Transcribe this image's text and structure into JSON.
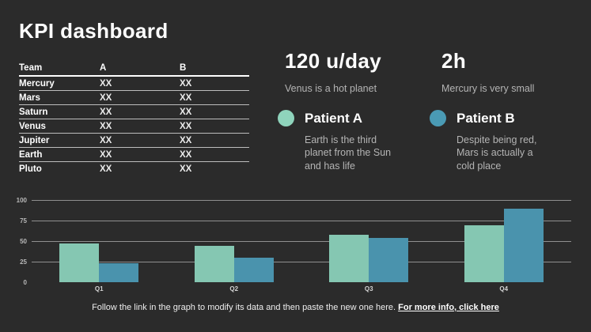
{
  "slide": {
    "title": "KPI dashboard",
    "background": "#2b2b2b"
  },
  "table": {
    "columns": [
      "Team",
      "A",
      "B"
    ],
    "rows": [
      {
        "team": "Mercury",
        "a": "XX",
        "b": "XX"
      },
      {
        "team": "Mars",
        "a": "XX",
        "b": "XX"
      },
      {
        "team": "Saturn",
        "a": "XX",
        "b": "XX"
      },
      {
        "team": "Venus",
        "a": "XX",
        "b": "XX"
      },
      {
        "team": "Jupiter",
        "a": "XX",
        "b": "XX"
      },
      {
        "team": "Earth",
        "a": "XX",
        "b": "XX"
      },
      {
        "team": "Pluto",
        "a": "XX",
        "b": "XX"
      }
    ]
  },
  "kpis": [
    {
      "value": "120 u/day",
      "caption": "Venus is a hot planet"
    },
    {
      "value": "2h",
      "caption": "Mercury is very small"
    }
  ],
  "legend": [
    {
      "label": "Patient A",
      "color": "#8FD4BC",
      "description": "Earth is the third planet from the Sun and has life"
    },
    {
      "label": "Patient B",
      "color": "#4A9AB4",
      "description": "Despite being red, Mars is actually a cold place"
    }
  ],
  "chart_data": {
    "type": "bar",
    "categories": [
      "Q1",
      "Q2",
      "Q3",
      "Q4"
    ],
    "series": [
      {
        "name": "Patient A",
        "color": "#85C7B2",
        "values": [
          47,
          44,
          58,
          69
        ]
      },
      {
        "name": "Patient B",
        "color": "#4A93AD",
        "values": [
          23,
          30,
          54,
          89
        ]
      }
    ],
    "ylim": [
      0,
      100
    ],
    "yticks": [
      0,
      25,
      50,
      75,
      100
    ],
    "grid": true,
    "gridline_color": "#8f8f8f",
    "legend_position": "none",
    "xlabel": "",
    "ylabel": ""
  },
  "footer": {
    "text": "Follow the link in the graph to modify its data and then paste the new one here. ",
    "link_label": "For more info, click here"
  }
}
